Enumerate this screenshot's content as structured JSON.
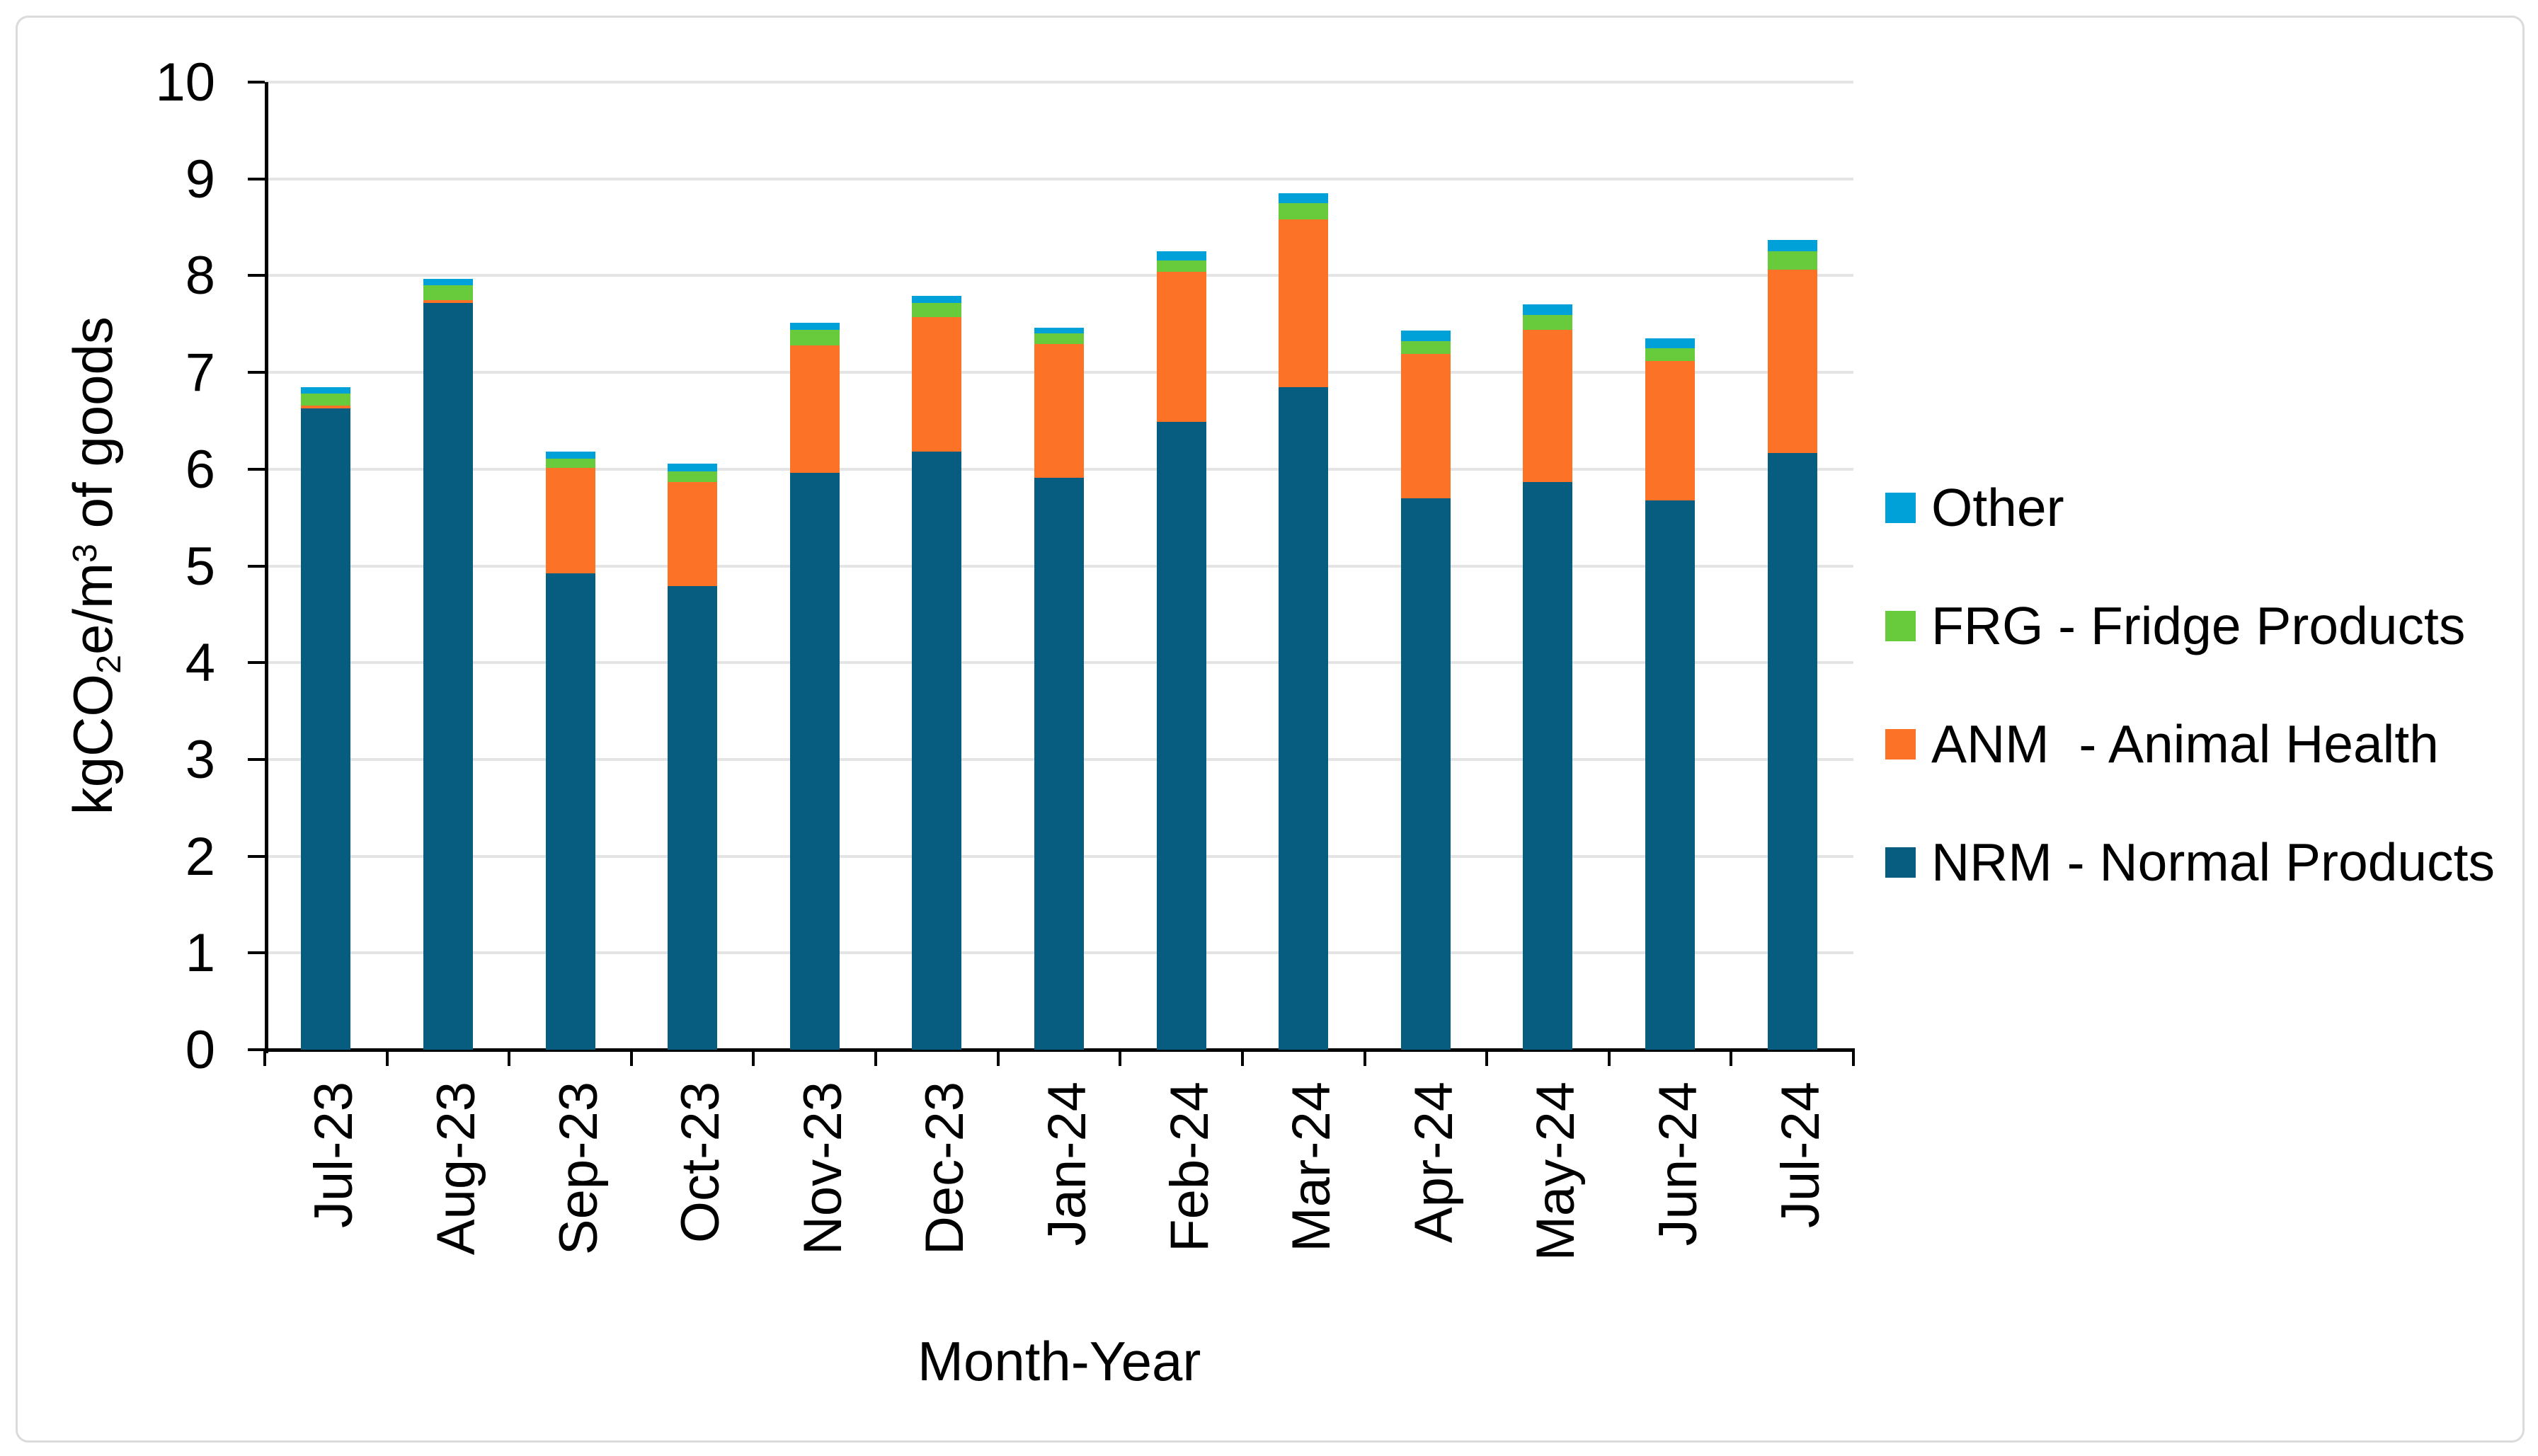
{
  "chart_data": {
    "type": "bar",
    "stacked": true,
    "xlabel": "Month-Year",
    "ylabel": "kgCO2e/m3 of goods",
    "ylabel_parts": [
      {
        "t": "kgCO"
      },
      {
        "t": "2",
        "style": "sub"
      },
      {
        "t": "e/m"
      },
      {
        "t": "3",
        "style": "sup"
      },
      {
        "t": " of goods"
      }
    ],
    "ylim": [
      0,
      10
    ],
    "ytick_step": 1,
    "yticks": [
      "0",
      "1",
      "2",
      "3",
      "4",
      "5",
      "6",
      "7",
      "8",
      "9",
      "10"
    ],
    "grid": "horizontal",
    "legend_position": "right",
    "categories": [
      "Jul-23",
      "Aug-23",
      "Sep-23",
      "Oct-23",
      "Nov-23",
      "Dec-23",
      "Jan-24",
      "Feb-24",
      "Mar-24",
      "Apr-24",
      "May-24",
      "Jun-24",
      "Jul-24"
    ],
    "series": [
      {
        "name": "NRM - Normal Products",
        "color": "#065D7F",
        "values": [
          6.63,
          7.72,
          4.92,
          4.79,
          5.96,
          6.18,
          5.91,
          6.49,
          6.85,
          5.7,
          5.87,
          5.68,
          6.17
        ]
      },
      {
        "name": "ANM - Animal Health",
        "color": "#FC7227",
        "values": [
          0.03,
          0.03,
          1.09,
          1.08,
          1.32,
          1.39,
          1.38,
          1.55,
          1.73,
          1.49,
          1.57,
          1.44,
          1.89
        ]
      },
      {
        "name": "FRG - Fridge Products",
        "color": "#68CB3C",
        "values": [
          0.12,
          0.15,
          0.1,
          0.11,
          0.16,
          0.15,
          0.11,
          0.12,
          0.17,
          0.13,
          0.15,
          0.13,
          0.19
        ]
      },
      {
        "name": "Other",
        "color": "#00A1D9",
        "values": [
          0.07,
          0.07,
          0.07,
          0.08,
          0.07,
          0.07,
          0.06,
          0.09,
          0.1,
          0.11,
          0.11,
          0.1,
          0.12
        ]
      }
    ],
    "totals": [
      6.85,
      7.97,
      6.18,
      6.06,
      7.51,
      7.79,
      7.46,
      8.25,
      8.85,
      7.43,
      7.7,
      7.35,
      8.37
    ],
    "legend_items": [
      {
        "label": "Other",
        "color": "#00A1D9"
      },
      {
        "label": "FRG - Fridge Products",
        "color": "#68CB3C"
      },
      {
        "label": "ANM  - Animal Health",
        "color": "#FC7227"
      },
      {
        "label": "NRM - Normal Products",
        "color": "#065D7F"
      }
    ],
    "axis_color": "#000000",
    "gridline_color": "#E4E4E4",
    "frame_border_color": "#DBDBDB",
    "background_color": "#FFFFFF"
  }
}
